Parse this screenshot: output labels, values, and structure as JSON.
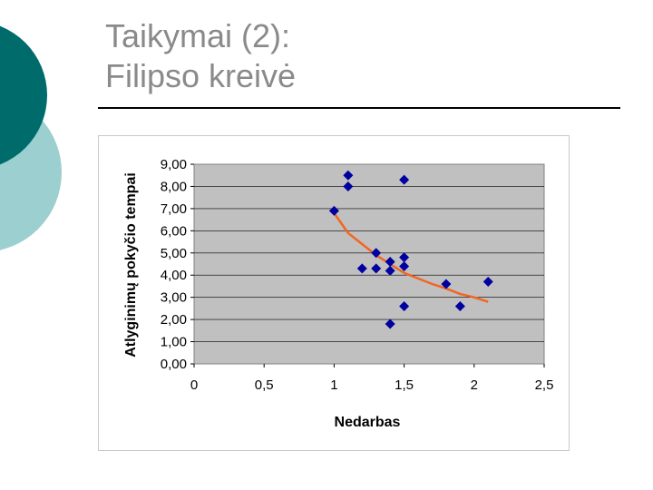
{
  "slide": {
    "title_line1": "Taikymai (2):",
    "title_line2": "Filipso kreivė"
  },
  "colors": {
    "decor_dark": "#006b6b",
    "decor_light": "#9ccfcf",
    "plot_area": "#c0c0c0",
    "points": "#0000a0",
    "trend": "#f26522",
    "title_text": "#8a8a8a"
  },
  "chart_data": {
    "type": "scatter",
    "xlabel": "Nedarbas",
    "ylabel": "Atlyginimų pokyčio tempai",
    "xlim": [
      0,
      2.5
    ],
    "ylim": [
      0,
      9
    ],
    "x_ticks": [
      "0",
      "0,5",
      "1",
      "1,5",
      "2",
      "2,5"
    ],
    "y_ticks": [
      "0,00",
      "1,00",
      "2,00",
      "3,00",
      "4,00",
      "5,00",
      "6,00",
      "7,00",
      "8,00",
      "9,00"
    ],
    "grid": "horizontal",
    "legend": "none",
    "points": [
      {
        "x": 1.0,
        "y": 6.9
      },
      {
        "x": 1.1,
        "y": 8.5
      },
      {
        "x": 1.1,
        "y": 8.0
      },
      {
        "x": 1.2,
        "y": 4.3
      },
      {
        "x": 1.3,
        "y": 5.0
      },
      {
        "x": 1.3,
        "y": 4.3
      },
      {
        "x": 1.4,
        "y": 4.6
      },
      {
        "x": 1.4,
        "y": 4.2
      },
      {
        "x": 1.4,
        "y": 1.8
      },
      {
        "x": 1.5,
        "y": 8.3
      },
      {
        "x": 1.5,
        "y": 4.8
      },
      {
        "x": 1.5,
        "y": 4.4
      },
      {
        "x": 1.5,
        "y": 2.6
      },
      {
        "x": 1.8,
        "y": 3.6
      },
      {
        "x": 1.9,
        "y": 2.6
      },
      {
        "x": 2.1,
        "y": 3.7
      }
    ],
    "trendline": [
      {
        "x": 1.0,
        "y": 6.8
      },
      {
        "x": 1.1,
        "y": 5.9
      },
      {
        "x": 1.2,
        "y": 5.4
      },
      {
        "x": 1.3,
        "y": 4.9
      },
      {
        "x": 1.4,
        "y": 4.5
      },
      {
        "x": 1.5,
        "y": 4.1
      },
      {
        "x": 1.6,
        "y": 3.85
      },
      {
        "x": 1.7,
        "y": 3.6
      },
      {
        "x": 1.8,
        "y": 3.4
      },
      {
        "x": 1.9,
        "y": 3.15
      },
      {
        "x": 2.0,
        "y": 3.0
      },
      {
        "x": 2.1,
        "y": 2.8
      }
    ]
  }
}
